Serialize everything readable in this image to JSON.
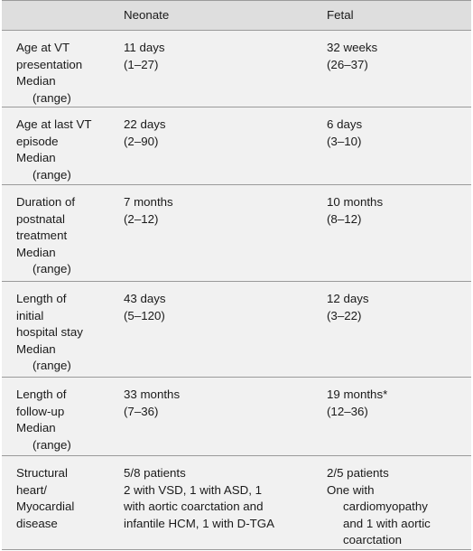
{
  "header": {
    "col1": "",
    "col2": "Neonate",
    "col3": "Fetal"
  },
  "rows": [
    {
      "label_lines": [
        "Age at VT",
        "presentation",
        "Median",
        "(range)"
      ],
      "neonate_lines": [
        "11 days",
        "(1–27)"
      ],
      "fetal_lines": [
        "32 weeks",
        "(26–37)"
      ]
    },
    {
      "label_lines": [
        "Age at last VT",
        "episode",
        "Median",
        "(range)"
      ],
      "neonate_lines": [
        "22 days",
        "(2–90)"
      ],
      "fetal_lines": [
        "6 days",
        "(3–10)"
      ]
    },
    {
      "label_lines": [
        "Duration of",
        "postnatal",
        "treatment",
        "Median",
        "(range)"
      ],
      "neonate_lines": [
        "7 months",
        "(2–12)"
      ],
      "fetal_lines": [
        "10 months",
        "(8–12)"
      ]
    },
    {
      "label_lines": [
        "Length of",
        "initial",
        "hospital stay",
        "Median",
        "(range)"
      ],
      "neonate_lines": [
        "43 days",
        "(5–120)"
      ],
      "fetal_lines": [
        "12 days",
        "(3–22)"
      ]
    },
    {
      "label_lines": [
        "Length of",
        "follow-up",
        "Median",
        "(range)"
      ],
      "neonate_lines": [
        "33 months",
        "(7–36)"
      ],
      "fetal_lines": [
        "19 months*",
        "(12–36)"
      ]
    },
    {
      "label_lines": [
        "Structural",
        "heart/",
        "Myocardial",
        "disease"
      ],
      "neonate_lines": [
        "5/8 patients",
        "2 with VSD, 1 with ASD, 1",
        "with aortic coarctation and",
        "infantile HCM, 1 with D-TGA"
      ],
      "fetal_lines": [
        "2/5 patients",
        "One with",
        "cardiomyopathy",
        "and 1 with aortic",
        "coarctation"
      ]
    }
  ]
}
